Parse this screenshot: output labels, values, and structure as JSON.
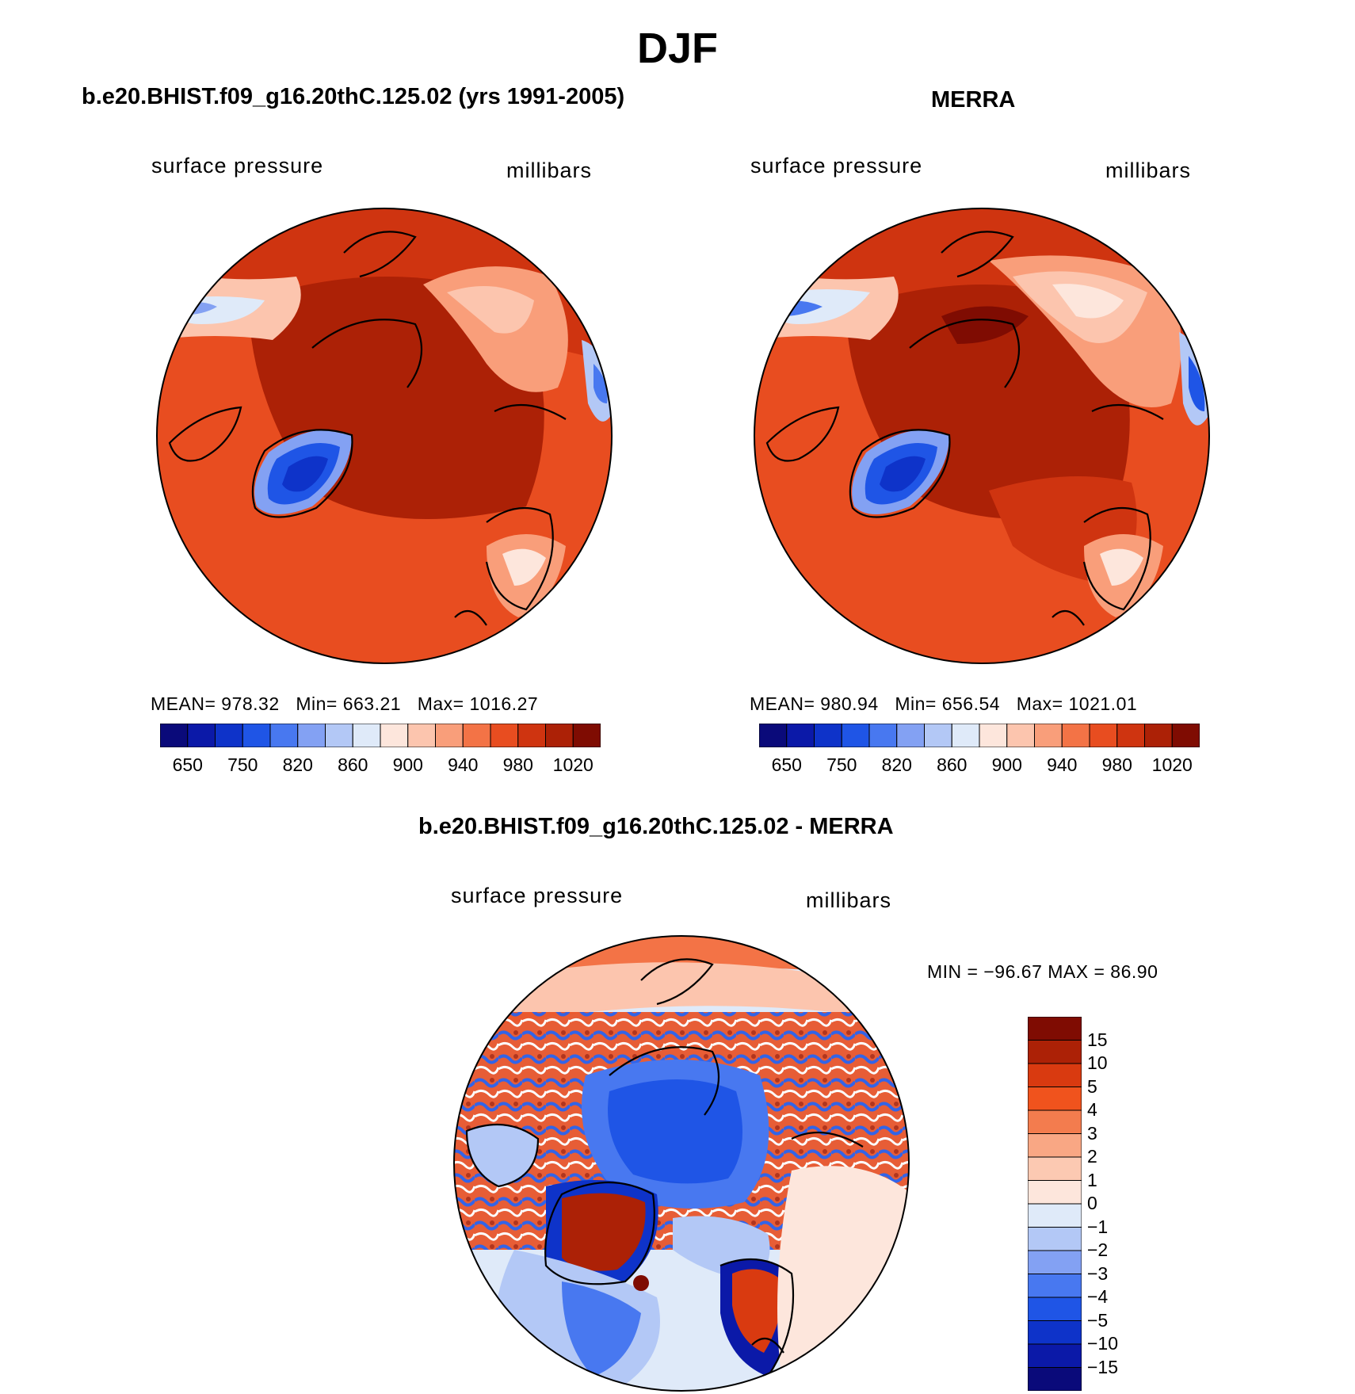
{
  "figure": {
    "title": "DJF",
    "colors": {
      "land_outline": "#000000",
      "background": "#ffffff"
    }
  },
  "panels": {
    "model": {
      "title": "b.e20.BHIST.f09_g16.20thC.125.02 (yrs 1991-2005)",
      "variable": "surface pressure",
      "units": "millibars",
      "mean_label": "MEAN=",
      "mean": "978.32",
      "min_label": "Min=",
      "min": "663.21",
      "max_label": "Max=",
      "max": "1016.27"
    },
    "obs": {
      "title": "MERRA",
      "variable": "surface pressure",
      "units": "millibars",
      "mean_label": "MEAN=",
      "mean": "980.94",
      "min_label": "Min=",
      "min": "656.54",
      "max_label": "Max=",
      "max": "1021.01"
    },
    "diff": {
      "title": "b.e20.BHIST.f09_g16.20thC.125.02 - MERRA",
      "variable": "surface pressure",
      "units": "millibars",
      "minmax_text": "MIN = −96.67 MAX =   86.90"
    }
  },
  "colorbars": {
    "absolute": {
      "colors": [
        "#0a0a7a",
        "#0b19a8",
        "#0e33c9",
        "#1f55e6",
        "#4878f0",
        "#83a1f3",
        "#b3c8f6",
        "#dfeaf9",
        "#fde6dc",
        "#fcc5ae",
        "#f99e7a",
        "#f37346",
        "#e84d20",
        "#cf3410",
        "#ac2106",
        "#7f0c02"
      ],
      "tick_labels": [
        "650",
        "750",
        "820",
        "860",
        "900",
        "940",
        "980",
        "1020"
      ]
    },
    "difference": {
      "colors": [
        "#7f0c02",
        "#ac2106",
        "#d93a10",
        "#f0531d",
        "#f37c4e",
        "#f9a784",
        "#fcc9b2",
        "#fde6dc",
        "#dfeaf9",
        "#b3c8f6",
        "#83a1f3",
        "#4878f0",
        "#1f55e6",
        "#0e33c9",
        "#0b19a8",
        "#0a0a7a"
      ],
      "tick_labels": [
        "15",
        "10",
        "5",
        "4",
        "3",
        "2",
        "1",
        "0",
        "−1",
        "−2",
        "−3",
        "−4",
        "−5",
        "−10",
        "−15"
      ]
    }
  }
}
